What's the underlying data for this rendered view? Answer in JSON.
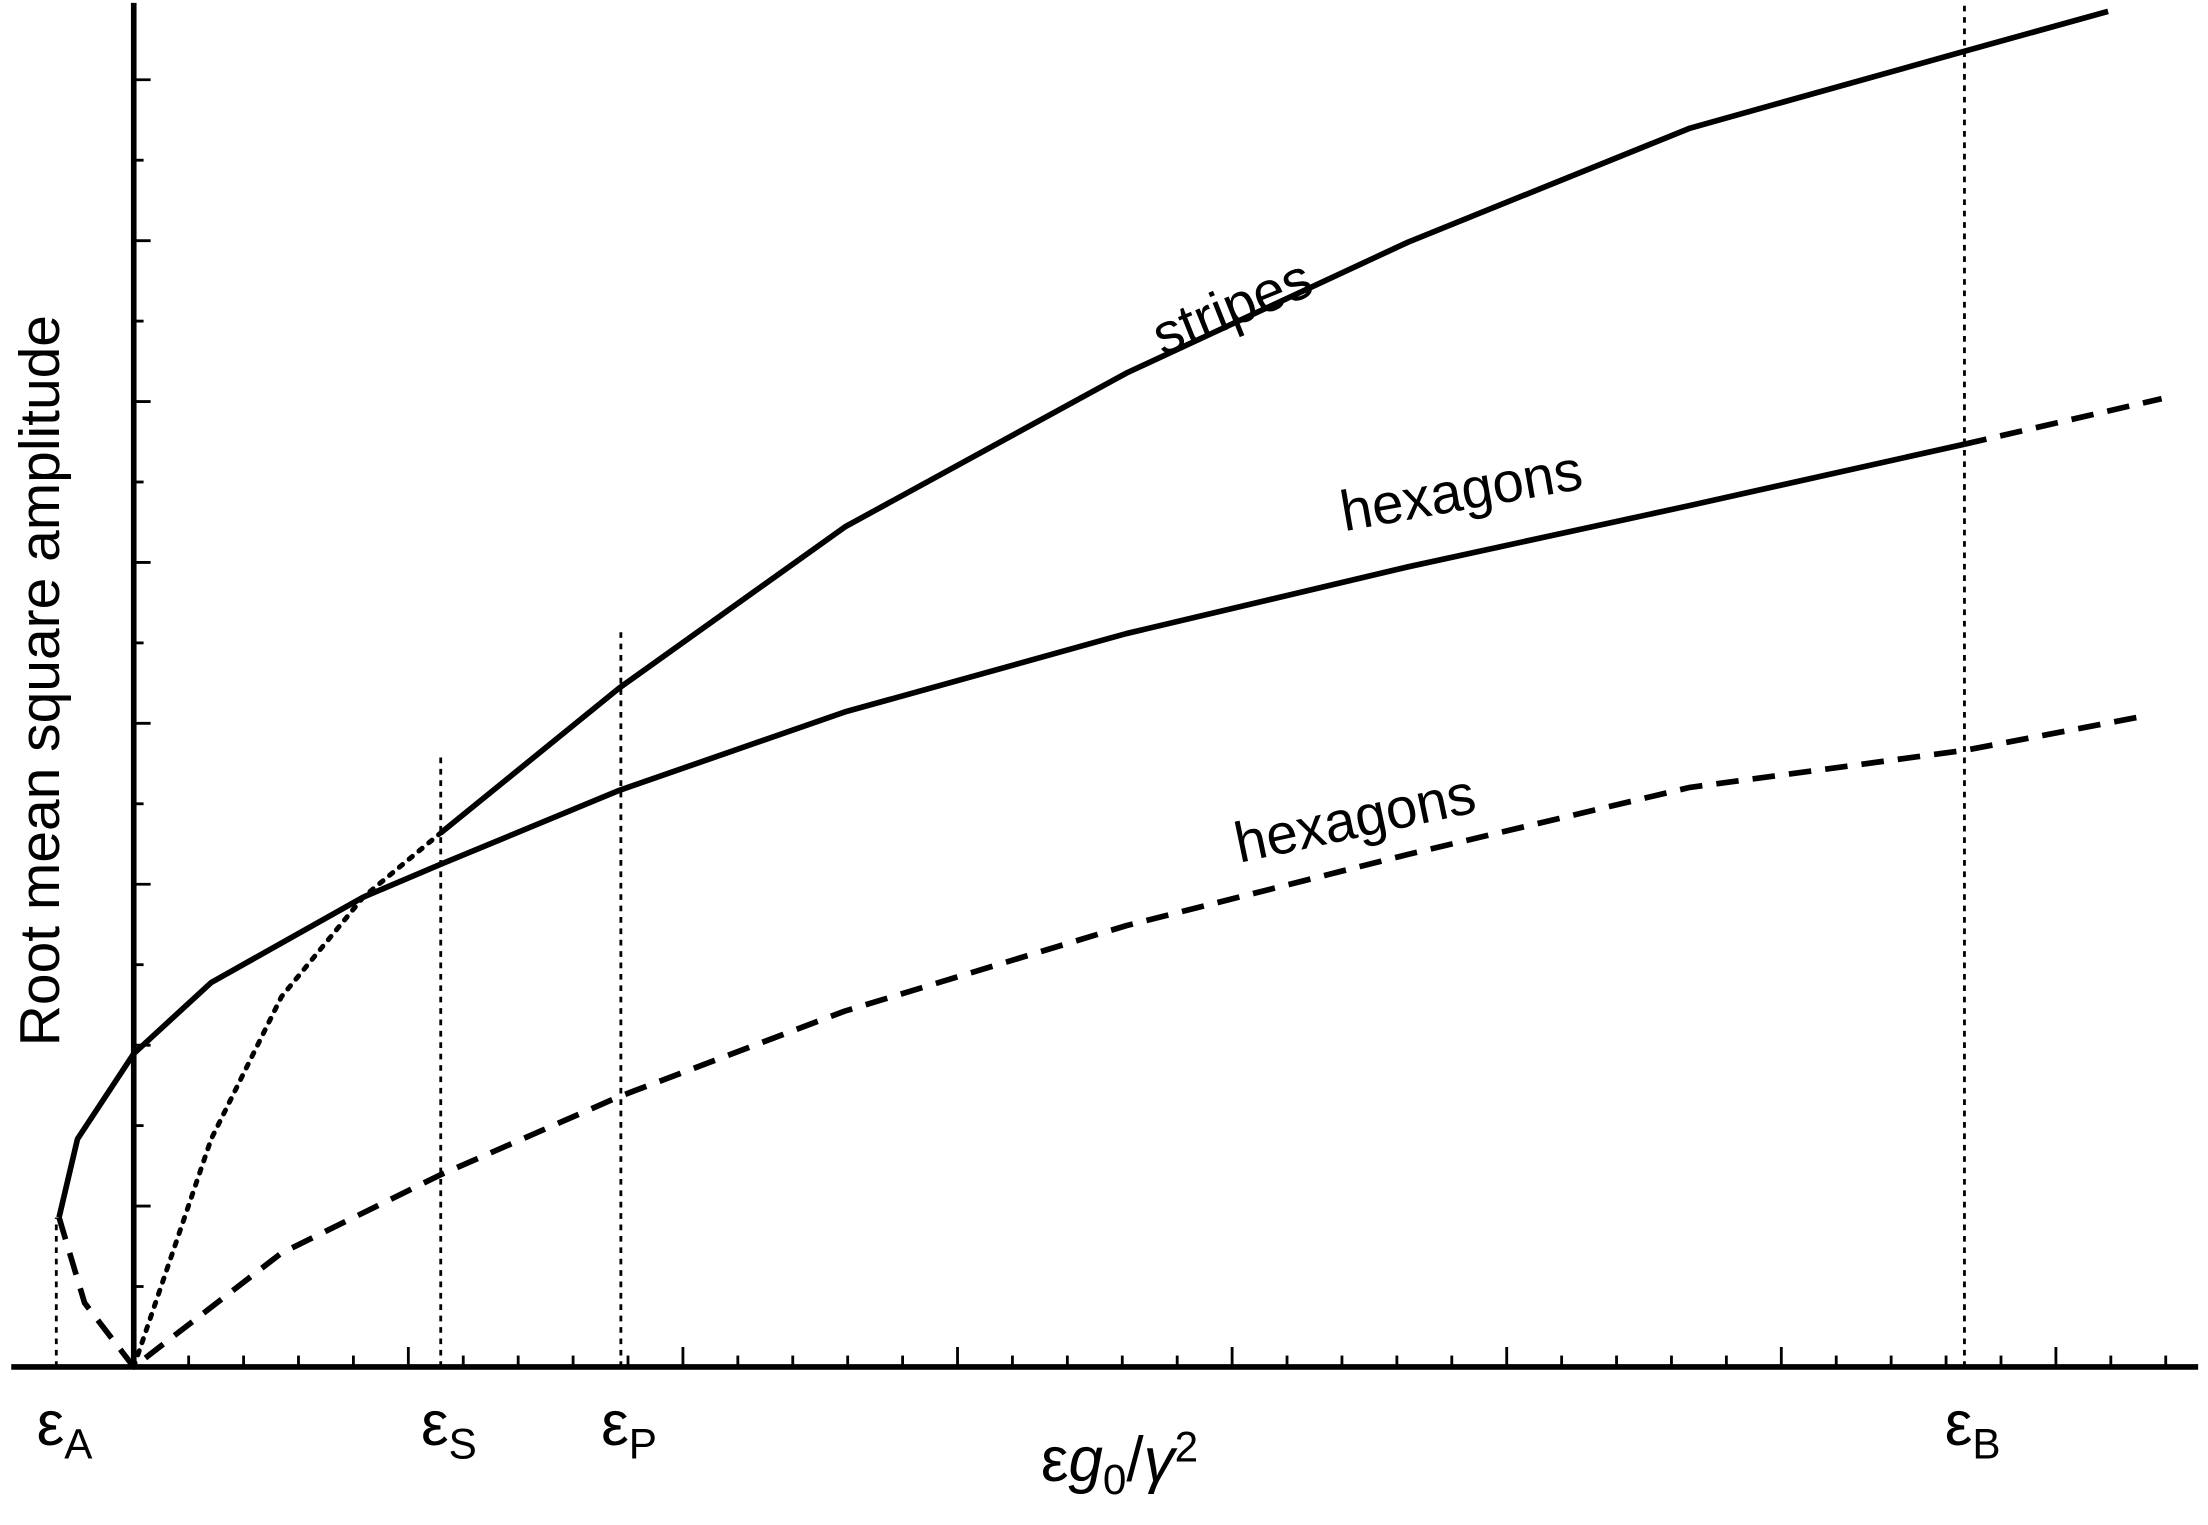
{
  "chart_data": {
    "type": "line",
    "ylabel": "Root mean square amplitude",
    "xlabel": [
      {
        "text": "ε",
        "style": "normal"
      },
      {
        "text": "g",
        "style": "italic"
      },
      {
        "text": "0",
        "style": "sub"
      },
      {
        "text": "/",
        "style": "normal"
      },
      {
        "text": "γ",
        "style": "italic"
      },
      {
        "text": "2",
        "style": "sup"
      }
    ],
    "xlim": [
      -0.446,
      7.518
    ],
    "ylim": [
      0,
      8.478
    ],
    "xticks": [
      0.2,
      0.4,
      0.6,
      0.8,
      1,
      1.2,
      1.4,
      1.6,
      1.8,
      2,
      2.2,
      2.4,
      2.6,
      2.8,
      3,
      3.2,
      3.4,
      3.6,
      3.8,
      4,
      4.2,
      4.4,
      4.6,
      4.8,
      5,
      5.2,
      5.4,
      5.6,
      5.8,
      6,
      6.2,
      6.4,
      6.6,
      6.8,
      7,
      7.2,
      7.4
    ],
    "yticks": [
      0.5,
      1,
      1.5,
      2,
      2.5,
      3,
      3.5,
      4,
      4.5,
      5,
      5.5,
      6,
      6.5,
      7,
      7.5,
      8
    ],
    "color": "#000000",
    "series": [
      {
        "style": "solid",
        "x": [
          1.118,
          1.769,
          2.59,
          3.615,
          4.641,
          5.667,
          6.667,
          7.19
        ],
        "values": [
          3.319,
          4.221,
          5.221,
          6.177,
          6.991,
          7.699,
          8.177,
          8.425
        ]
      },
      {
        "style": "dotted",
        "x": [
          0,
          0.282,
          0.538,
          0.836,
          1.118
        ],
        "values": [
          0,
          1.416,
          2.301,
          2.92,
          3.319
        ]
      },
      {
        "style": "solid",
        "x": [
          -0.272,
          -0.205,
          0,
          0.282,
          0.836,
          1.118,
          1.769,
          2.59,
          3.615,
          4.641,
          5.667,
          6.667
        ],
        "values": [
          0.929,
          1.416,
          1.947,
          2.389,
          2.92,
          3.124,
          3.584,
          4.071,
          4.558,
          4.973,
          5.354,
          5.735
        ]
      },
      {
        "style": "dashed",
        "x": [
          6.667,
          7.385
        ],
        "values": [
          5.735,
          6.018
        ]
      },
      {
        "style": "dashed",
        "x": [
          -0.272,
          -0.179,
          0,
          0.538,
          1.118,
          1.769,
          2.59,
          3.615,
          4.641,
          5.667,
          6.667,
          7.318
        ],
        "values": [
          0.929,
          0.398,
          0,
          0.708,
          1.195,
          1.681,
          2.212,
          2.743,
          3.186,
          3.602,
          3.832,
          4.044
        ]
      }
    ],
    "markers": [
      {
        "x": -0.282,
        "ymax": 0.929,
        "label": "ε",
        "subscript": "A"
      },
      {
        "x": 1.118,
        "ymax": 3.788,
        "label": "ε",
        "subscript": "S"
      },
      {
        "x": 1.774,
        "ymax": 4.575,
        "label": "ε",
        "subscript": "P"
      },
      {
        "x": 6.667,
        "ymax": 8.478,
        "label": "ε",
        "subscript": "B"
      }
    ],
    "annotations": [
      "stripes",
      "hexagons",
      "hexagons"
    ]
  }
}
